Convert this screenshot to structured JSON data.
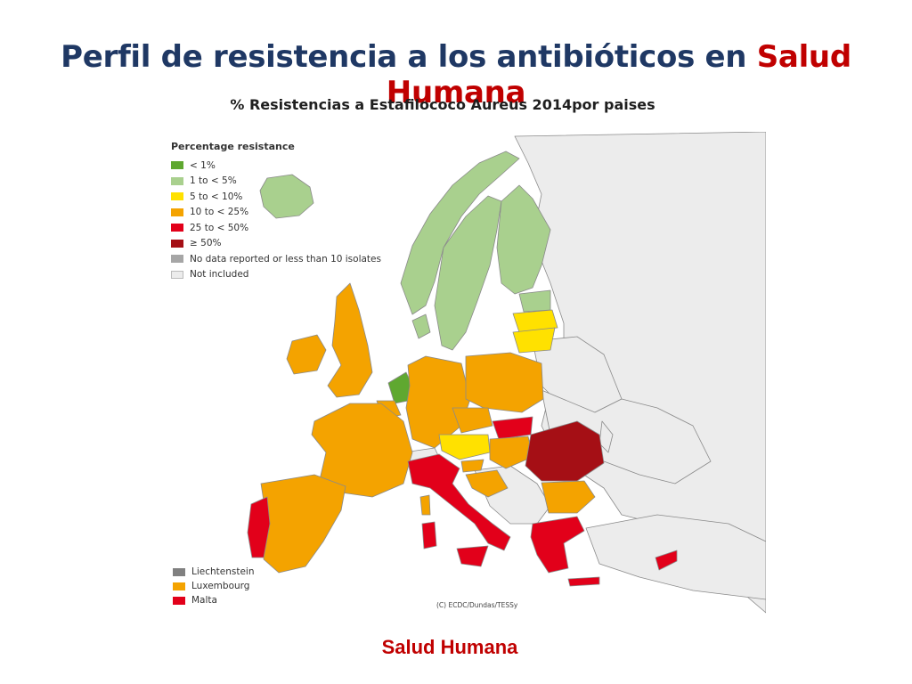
{
  "slide": {
    "title_prefix": "Perfil de resistencia a los antibióticos en ",
    "title_highlight": "Salud Humana",
    "subtitle": "% Resistencias a Estafilococo Aureus 2014por paises",
    "footer": "Salud Humana"
  },
  "colors": {
    "title": "#1f3864",
    "highlight": "#c00000",
    "lt1": "#5fa830",
    "lt5": "#a9d08e",
    "lt10": "#ffe100",
    "lt25": "#f4a300",
    "lt50": "#e2001a",
    "ge50": "#a50f15",
    "nodata": "#a6a6a6",
    "notincluded": "#ececec"
  },
  "map": {
    "legend_title": "Percentage resistance",
    "legend": [
      {
        "label": "< 1%",
        "color": "#5fa830"
      },
      {
        "label": "1 to < 5%",
        "color": "#a9d08e"
      },
      {
        "label": "5 to < 10%",
        "color": "#ffe100"
      },
      {
        "label": "10 to < 25%",
        "color": "#f4a300"
      },
      {
        "label": "25 to < 50%",
        "color": "#e2001a"
      },
      {
        "label": "≥ 50%",
        "color": "#a50f15"
      },
      {
        "label": "No data reported or less than 10 isolates",
        "color": "#a6a6a6"
      },
      {
        "label": "Not included",
        "color": "#ececec"
      }
    ],
    "small_countries": [
      {
        "label": "Liechtenstein",
        "color": "#808080"
      },
      {
        "label": "Luxembourg",
        "color": "#f4a300"
      },
      {
        "label": "Malta",
        "color": "#e2001a"
      }
    ],
    "credit": "(C) ECDC/Dundas/TESSy"
  }
}
